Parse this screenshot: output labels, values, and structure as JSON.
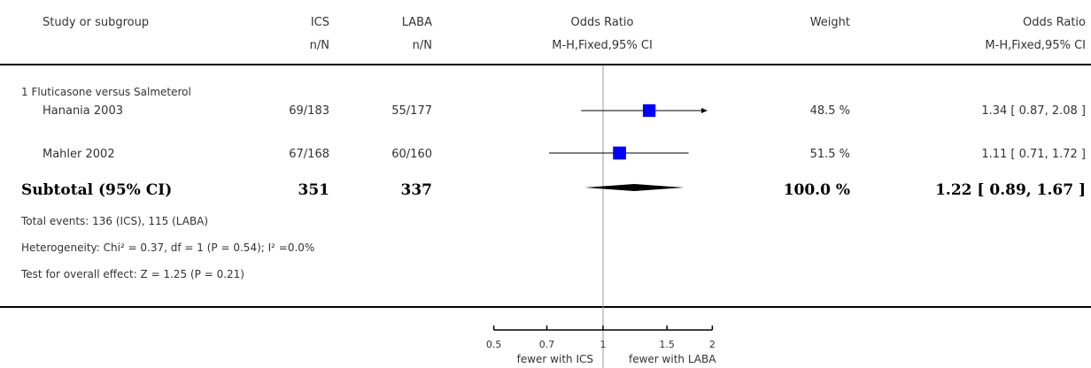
{
  "header": {
    "study": "Study or subgroup",
    "ics": "ICS",
    "laba": "LABA",
    "ics_sub": "n/N",
    "laba_sub": "n/N",
    "or_plot": "Odds Ratio",
    "or_plot_sub": "M-H,Fixed,95% CI",
    "weight": "Weight",
    "or_text": "Odds Ratio",
    "or_text_sub": "M-H,Fixed,95% CI"
  },
  "subgroup_title": "1 Fluticasone versus Salmeterol",
  "studies": [
    {
      "name": "Hanania 2003",
      "ics": "69/183",
      "laba": "55/177",
      "weight": "48.5 %",
      "ci_text": "1.34 [ 0.87, 2.08 ]"
    },
    {
      "name": "Mahler 2002",
      "ics": "67/168",
      "laba": "60/160",
      "weight": "51.5 %",
      "ci_text": "1.11 [ 0.71, 1.72 ]"
    }
  ],
  "subtotal": {
    "label": "Subtotal (95% CI)",
    "ics": "351",
    "laba": "337",
    "weight": "100.0 %",
    "ci_text": "1.22 [ 0.89, 1.67 ]"
  },
  "footnotes": {
    "events": "Total events: 136 (ICS), 115 (LABA)",
    "heterogeneity": "Heterogeneity: Chi² = 0.37, df = 1 (P = 0.54); I² =0.0%",
    "overall": "Test for overall effect: Z = 1.25 (P = 0.21)"
  },
  "axis": {
    "favours_left": "fewer with ICS",
    "favours_right": "fewer with LABA"
  },
  "colors": {
    "marker": "#0000ff",
    "diamond": "#000000",
    "line": "#000000",
    "null_line": "#999999"
  },
  "chart_data": {
    "type": "forest",
    "scale": "log",
    "xlim": [
      0.5,
      2
    ],
    "ticks": [
      0.5,
      0.7,
      1,
      1.5,
      2
    ],
    "tick_labels": [
      "0.5",
      "0.7",
      "1",
      "1.5",
      "2"
    ],
    "null_value": 1,
    "series": [
      {
        "name": "Hanania 2003",
        "or": 1.34,
        "lower": 0.87,
        "upper": 2.08,
        "weight": 48.5
      },
      {
        "name": "Mahler 2002",
        "or": 1.11,
        "lower": 0.71,
        "upper": 1.72,
        "weight": 51.5
      }
    ],
    "pooled": {
      "or": 1.22,
      "lower": 0.89,
      "upper": 1.67
    }
  }
}
